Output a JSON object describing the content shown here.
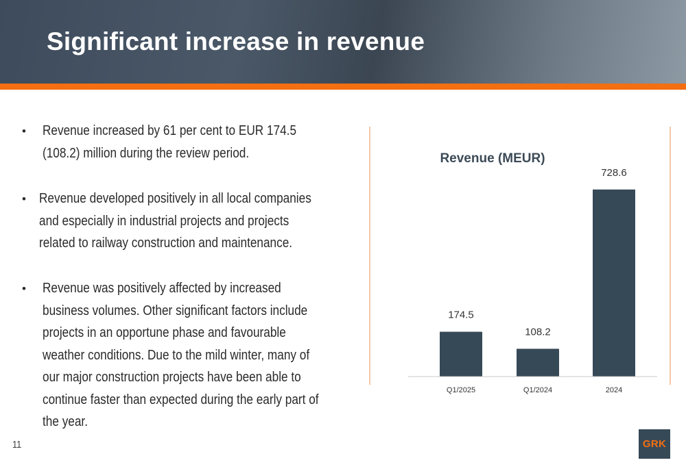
{
  "slide": {
    "title": "Significant increase in revenue",
    "page_number": "11",
    "logo_text": "GRK",
    "colors": {
      "header_dark": "#3d4b5c",
      "accent_orange": "#f36f12",
      "bar": "#364957"
    }
  },
  "bullets": [
    {
      "lines": [
        "Revenue increased by 61 per cent to EUR 174.5",
        "(108.2) million during the review period."
      ]
    },
    {
      "lines": [
        "Revenue developed positively in all local companies",
        "and especially in industrial projects and projects",
        "related to railway construction and maintenance."
      ]
    },
    {
      "lines": [
        "Revenue was positively affected by increased",
        "business volumes.  Other significant factors include",
        "projects in an opportune phase and favourable",
        "weather conditions. Due to the mild winter, many of",
        "our major construction projects have been able to",
        "continue faster than expected during the early part of",
        "the year."
      ]
    }
  ],
  "chart_data": {
    "type": "bar",
    "title": "Revenue (MEUR)",
    "categories": [
      "Q1/2025",
      "Q1/2024",
      "2024"
    ],
    "values": [
      174.5,
      108.2,
      728.6
    ],
    "data_labels": [
      "174.5",
      "108.2",
      "728.6"
    ],
    "ylim": [
      0,
      800
    ],
    "grid": false,
    "legend": "none"
  }
}
